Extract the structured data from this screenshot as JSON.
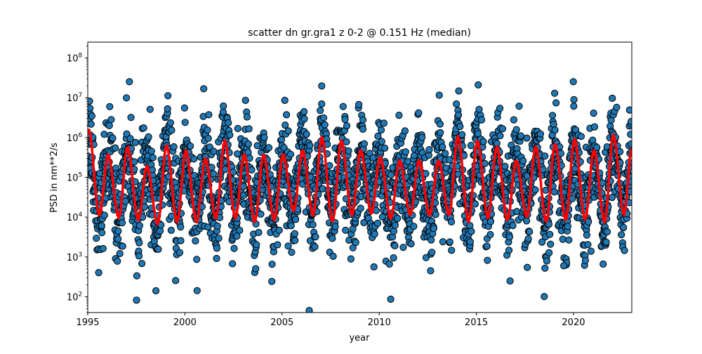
{
  "chart_data": {
    "type": "scatter",
    "title": "scatter dn gr.gra1 z 0-2 @ 0.151 Hz (median)",
    "xlabel": "year",
    "ylabel": "PSD in nm**2/s",
    "x_range": [
      1995,
      2023
    ],
    "y_range": [
      40,
      250000000
    ],
    "y_scale": "log",
    "grid": false,
    "x_ticks": [
      {
        "value": 1995,
        "label": "1995"
      },
      {
        "value": 2000,
        "label": "2000"
      },
      {
        "value": 2005,
        "label": "2005"
      },
      {
        "value": 2010,
        "label": "2010"
      },
      {
        "value": 2015,
        "label": "2015"
      },
      {
        "value": 2020,
        "label": "2020"
      }
    ],
    "y_ticks": [
      {
        "value": 100,
        "base": "10",
        "exp": "2"
      },
      {
        "value": 1000,
        "base": "10",
        "exp": "3"
      },
      {
        "value": 10000,
        "base": "10",
        "exp": "4"
      },
      {
        "value": 100000,
        "base": "10",
        "exp": "5"
      },
      {
        "value": 1000000,
        "base": "10",
        "exp": "6"
      },
      {
        "value": 10000000,
        "base": "10",
        "exp": "7"
      },
      {
        "value": 100000000,
        "base": "10",
        "exp": "8"
      }
    ],
    "series": [
      {
        "marker": "circle",
        "color": "#1f77b4",
        "edge_color": "#000000",
        "note_values": "seasonal cycle: winter peaks ~1e6-1e7, summer troughs ~3e3-1e4",
        "peaks": [
          {
            "x": 1995.05,
            "y": 1500000
          },
          {
            "x": 1996.05,
            "y": 350000
          },
          {
            "x": 1997.05,
            "y": 550000
          },
          {
            "x": 1998.05,
            "y": 180000
          },
          {
            "x": 1999.05,
            "y": 600000
          },
          {
            "x": 2000.05,
            "y": 450000
          },
          {
            "x": 2001.05,
            "y": 280000
          },
          {
            "x": 2002.05,
            "y": 800000
          },
          {
            "x": 2003.05,
            "y": 350000
          },
          {
            "x": 2004.05,
            "y": 350000
          },
          {
            "x": 2005.05,
            "y": 350000
          },
          {
            "x": 2006.05,
            "y": 450000
          },
          {
            "x": 2007.05,
            "y": 950000
          },
          {
            "x": 2008.05,
            "y": 800000
          },
          {
            "x": 2009.05,
            "y": 450000
          },
          {
            "x": 2010.05,
            "y": 300000
          },
          {
            "x": 2011.05,
            "y": 250000
          },
          {
            "x": 2012.05,
            "y": 250000
          },
          {
            "x": 2013.05,
            "y": 250000
          },
          {
            "x": 2014.05,
            "y": 1000000
          },
          {
            "x": 2015.05,
            "y": 800000
          },
          {
            "x": 2016.05,
            "y": 550000
          },
          {
            "x": 2017.05,
            "y": 250000
          },
          {
            "x": 2018.05,
            "y": 550000
          },
          {
            "x": 2019.05,
            "y": 650000
          },
          {
            "x": 2020.05,
            "y": 850000
          },
          {
            "x": 2021.05,
            "y": 450000
          },
          {
            "x": 2022.05,
            "y": 1100000
          }
        ],
        "troughs": [
          {
            "x": 1995.6,
            "y": 12000
          },
          {
            "x": 1996.6,
            "y": 10000
          },
          {
            "x": 1997.6,
            "y": 9000
          },
          {
            "x": 1998.6,
            "y": 7000
          },
          {
            "x": 1999.6,
            "y": 8000
          },
          {
            "x": 2000.6,
            "y": 8000
          },
          {
            "x": 2001.6,
            "y": 10000
          },
          {
            "x": 2002.6,
            "y": 10000
          },
          {
            "x": 2003.6,
            "y": 8000
          },
          {
            "x": 2004.6,
            "y": 9000
          },
          {
            "x": 2005.6,
            "y": 15000
          },
          {
            "x": 2006.6,
            "y": 12000
          },
          {
            "x": 2007.6,
            "y": 8000
          },
          {
            "x": 2008.6,
            "y": 12000
          },
          {
            "x": 2009.6,
            "y": 13000
          },
          {
            "x": 2010.6,
            "y": 10000
          },
          {
            "x": 2011.6,
            "y": 12000
          },
          {
            "x": 2012.6,
            "y": 12000
          },
          {
            "x": 2013.6,
            "y": 12000
          },
          {
            "x": 2014.6,
            "y": 8000
          },
          {
            "x": 2015.6,
            "y": 10000
          },
          {
            "x": 2016.6,
            "y": 9000
          },
          {
            "x": 2017.6,
            "y": 11000
          },
          {
            "x": 2018.6,
            "y": 8000
          },
          {
            "x": 2019.6,
            "y": 9000
          },
          {
            "x": 2020.6,
            "y": 9000
          },
          {
            "x": 2021.6,
            "y": 8000
          },
          {
            "x": 2022.6,
            "y": 12000
          }
        ],
        "outliers": [
          {
            "x": 2006.4,
            "y": 45
          },
          {
            "x": 2015.1,
            "y": 21000000
          },
          {
            "x": 2019.5,
            "y": 600
          }
        ]
      },
      {
        "type": "line",
        "color": "#ff0000",
        "description": "median curve"
      }
    ]
  }
}
